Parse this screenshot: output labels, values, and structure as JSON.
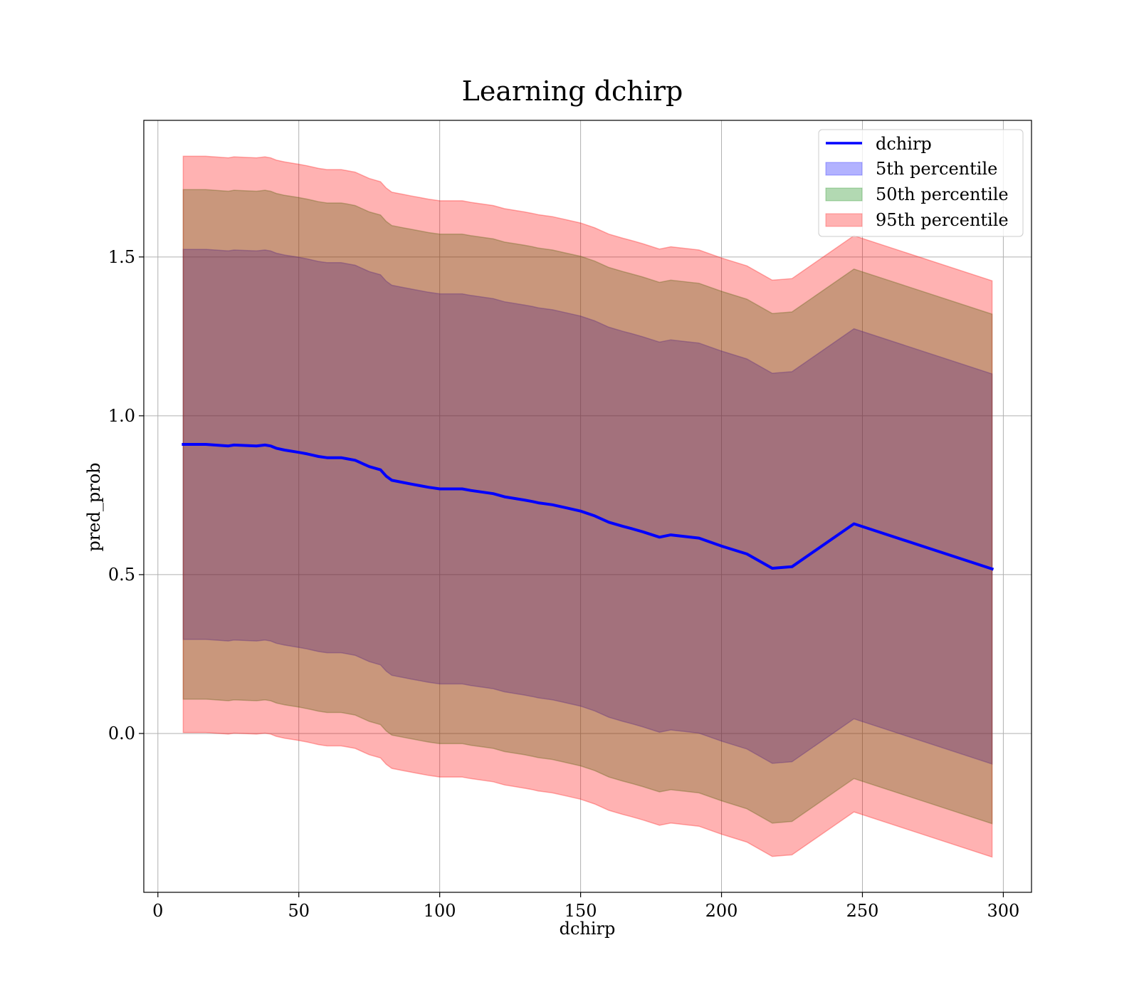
{
  "chart_data": {
    "type": "area",
    "title": "Learning dchirp",
    "xlabel": "dchirp",
    "ylabel": "pred_prob",
    "xlim": [
      -5,
      310
    ],
    "ylim": [
      -0.5,
      1.93
    ],
    "xticks": [
      0,
      50,
      100,
      150,
      200,
      250,
      300
    ],
    "yticks": [
      0.0,
      0.5,
      1.0,
      1.5
    ],
    "xtick_labels": [
      "0",
      "50",
      "100",
      "150",
      "200",
      "250",
      "300"
    ],
    "ytick_labels": [
      "0.0",
      "0.5",
      "1.0",
      "1.5"
    ],
    "grid": true,
    "legend_position": "top-right",
    "line": {
      "name": "dchirp",
      "color": "#0000ff",
      "x": [
        9,
        17,
        25,
        27,
        35,
        38,
        40,
        42,
        45,
        50,
        53,
        55,
        57,
        60,
        65,
        67,
        70,
        75,
        79,
        81,
        83,
        87,
        90,
        93,
        96,
        100,
        103,
        108,
        111,
        119,
        123,
        130,
        133,
        135,
        140,
        145,
        150,
        155,
        160,
        165,
        168,
        172,
        178,
        182,
        192,
        200,
        209,
        218,
        225,
        247,
        296
      ],
      "y": [
        0.91,
        0.91,
        0.905,
        0.908,
        0.905,
        0.908,
        0.905,
        0.898,
        0.892,
        0.885,
        0.88,
        0.876,
        0.872,
        0.868,
        0.868,
        0.865,
        0.86,
        0.84,
        0.83,
        0.81,
        0.797,
        0.79,
        0.785,
        0.78,
        0.775,
        0.77,
        0.77,
        0.77,
        0.765,
        0.755,
        0.745,
        0.735,
        0.73,
        0.726,
        0.72,
        0.71,
        0.7,
        0.685,
        0.665,
        0.652,
        0.645,
        0.635,
        0.618,
        0.625,
        0.615,
        0.59,
        0.565,
        0.52,
        0.525,
        0.66,
        0.518
      ]
    },
    "bands": [
      {
        "name": "5th percentile",
        "color": "#0000ff",
        "alpha": 0.3,
        "half_width": 0.614
      },
      {
        "name": "50th percentile",
        "color": "#008000",
        "alpha": 0.3,
        "half_width": 0.802
      },
      {
        "name": "95th percentile",
        "color": "#ff0000",
        "alpha": 0.3,
        "half_width": 0.907
      }
    ]
  }
}
